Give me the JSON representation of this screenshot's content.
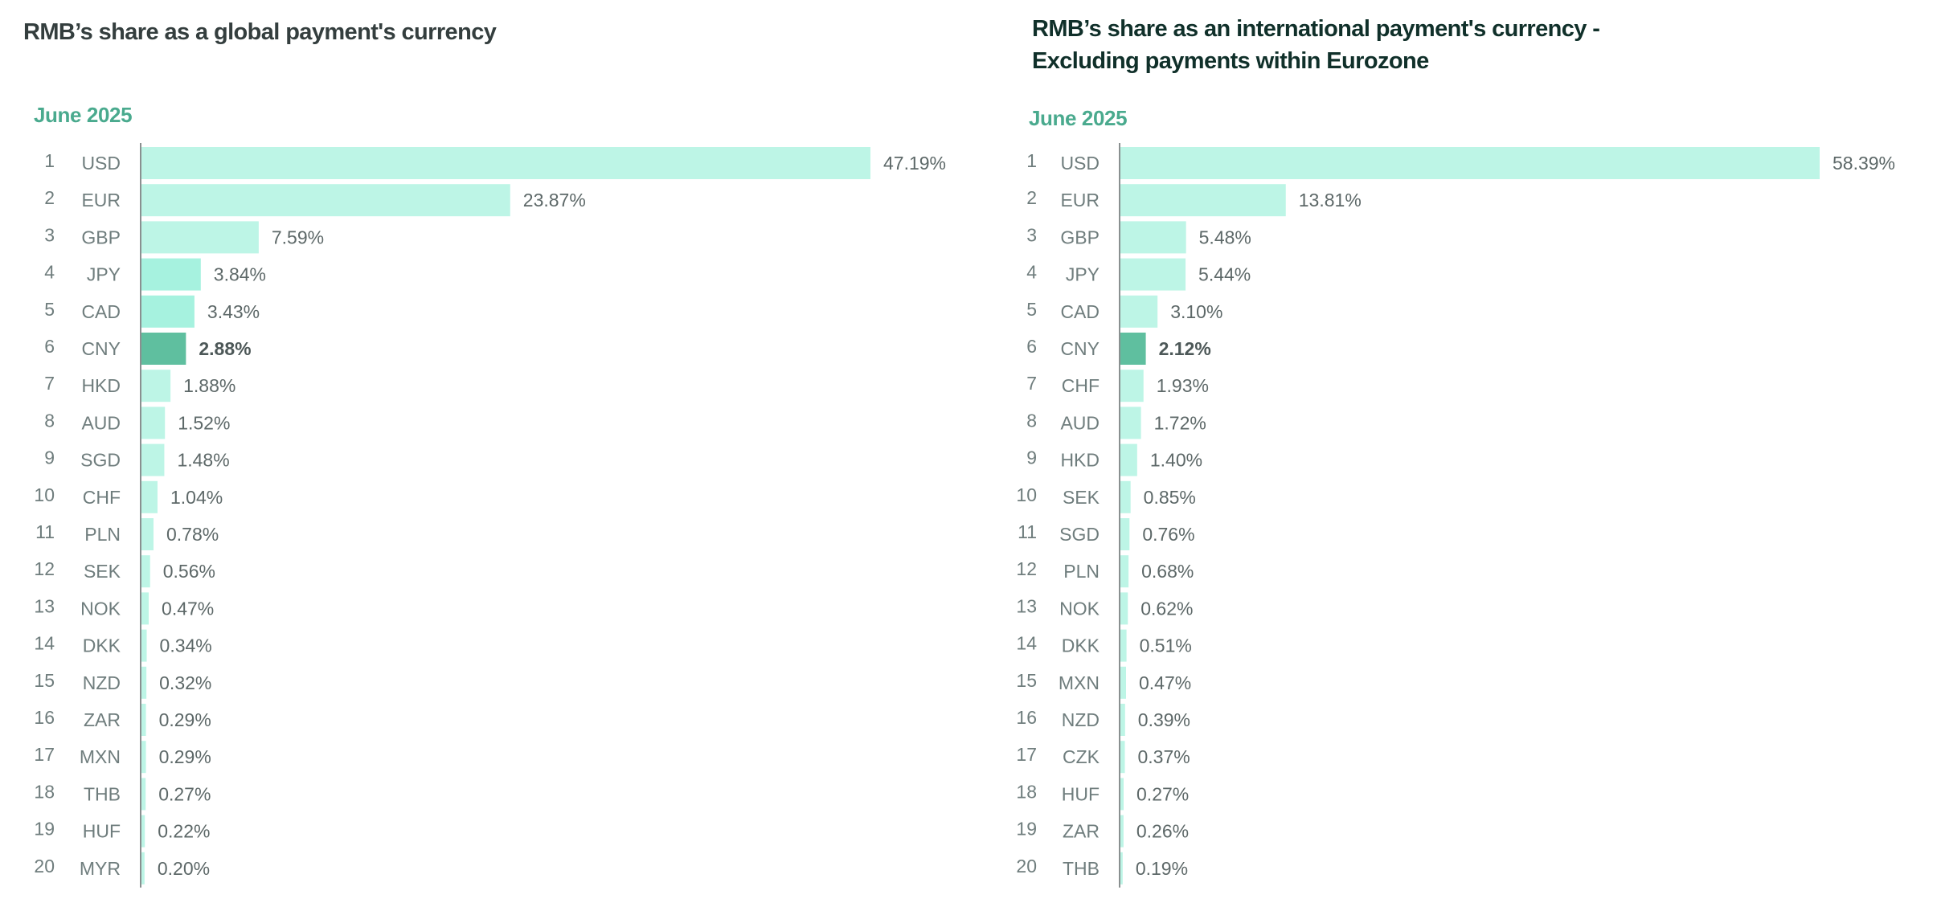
{
  "colors": {
    "bar": "#bdf5e6",
    "bar_alt": "#a6f2df",
    "highlight": "#5fbf9f",
    "subtitle": "#4aaa8e"
  },
  "chart_data": [
    {
      "type": "bar",
      "orientation": "horizontal",
      "title": "RMB’s share as a global payment's currency",
      "subtitle": "June 2025",
      "highlight": "CNY",
      "ranks": [
        1,
        2,
        3,
        4,
        5,
        6,
        7,
        8,
        9,
        10,
        11,
        12,
        13,
        14,
        15,
        16,
        17,
        18,
        19,
        20
      ],
      "categories": [
        "USD",
        "EUR",
        "GBP",
        "JPY",
        "CAD",
        "CNY",
        "HKD",
        "AUD",
        "SGD",
        "CHF",
        "PLN",
        "SEK",
        "NOK",
        "DKK",
        "NZD",
        "ZAR",
        "MXN",
        "THB",
        "HUF",
        "MYR"
      ],
      "values": [
        47.19,
        23.87,
        7.59,
        3.84,
        3.43,
        2.88,
        1.88,
        1.52,
        1.48,
        1.04,
        0.78,
        0.56,
        0.47,
        0.34,
        0.32,
        0.29,
        0.29,
        0.27,
        0.22,
        0.2
      ],
      "labels": [
        "47.19%",
        "23.87%",
        "7.59%",
        "3.84%",
        "3.43%",
        "2.88%",
        "1.88%",
        "1.52%",
        "1.48%",
        "1.04%",
        "0.78%",
        "0.56%",
        "0.47%",
        "0.34%",
        "0.32%",
        "0.29%",
        "0.29%",
        "0.27%",
        "0.22%",
        "0.20%"
      ],
      "unit": "%"
    },
    {
      "type": "bar",
      "orientation": "horizontal",
      "title": [
        "RMB’s share as an international payment's currency -",
        "Excluding payments within Eurozone"
      ],
      "subtitle": "June 2025",
      "highlight": "CNY",
      "ranks": [
        1,
        2,
        3,
        4,
        5,
        6,
        7,
        8,
        9,
        10,
        11,
        12,
        13,
        14,
        15,
        16,
        17,
        18,
        19,
        20
      ],
      "categories": [
        "USD",
        "EUR",
        "GBP",
        "JPY",
        "CAD",
        "CNY",
        "CHF",
        "AUD",
        "HKD",
        "SEK",
        "SGD",
        "PLN",
        "NOK",
        "DKK",
        "MXN",
        "NZD",
        "CZK",
        "HUF",
        "ZAR",
        "THB"
      ],
      "values": [
        58.39,
        13.81,
        5.48,
        5.44,
        3.1,
        2.12,
        1.93,
        1.72,
        1.4,
        0.85,
        0.76,
        0.68,
        0.62,
        0.51,
        0.47,
        0.39,
        0.37,
        0.27,
        0.26,
        0.19
      ],
      "labels": [
        "58.39%",
        "13.81%",
        "5.48%",
        "5.44%",
        "3.10%",
        "2.12%",
        "1.93%",
        "1.72%",
        "1.40%",
        "0.85%",
        "0.76%",
        "0.68%",
        "0.62%",
        "0.51%",
        "0.47%",
        "0.39%",
        "0.37%",
        "0.27%",
        "0.26%",
        "0.19%"
      ],
      "unit": "%"
    }
  ]
}
